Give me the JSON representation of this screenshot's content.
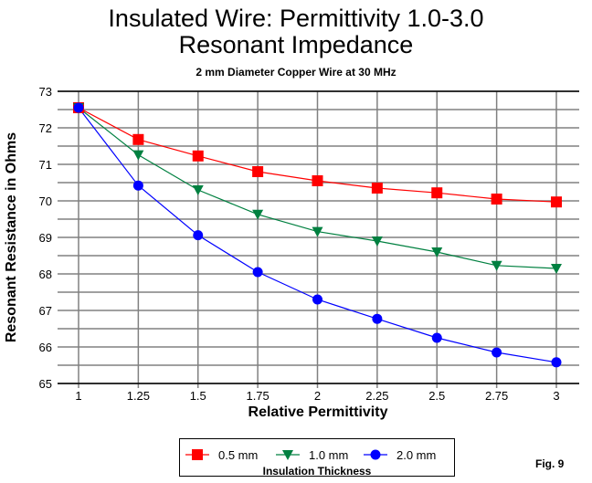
{
  "chart_data": {
    "type": "line",
    "title": "Insulated Wire:  Permittivity 1.0-3.0",
    "title2": "Resonant Impedance",
    "subtitle": "2 mm Diameter Copper Wire at 30 MHz",
    "xlabel": "Relative Permittivity",
    "ylabel": "Resonant Resistance in Ohms",
    "x": [
      1,
      1.25,
      1.5,
      1.75,
      2,
      2.25,
      2.5,
      2.75,
      3
    ],
    "x_tick_labels": [
      "1",
      "1.25",
      "1.5",
      "1.75",
      "2",
      "2.25",
      "2.5",
      "2.75",
      "3"
    ],
    "y_tick_labels": [
      "65",
      "66",
      "67",
      "68",
      "69",
      "70",
      "71",
      "72",
      "73"
    ],
    "xlim": [
      0.8,
      3.2
    ],
    "ylim": [
      65,
      73
    ],
    "grid": true,
    "legend_title": "Insulation Thickness",
    "legend_placement": "bottom",
    "series": [
      {
        "name": "0.5 mm",
        "color": "#ff0000",
        "marker": "square",
        "values": [
          72.55,
          71.68,
          71.23,
          70.8,
          70.55,
          70.35,
          70.22,
          70.05,
          69.97
        ]
      },
      {
        "name": "1.0 mm",
        "color": "#008040",
        "marker": "triangle-down",
        "values": [
          72.55,
          71.26,
          70.3,
          69.63,
          69.16,
          68.9,
          68.6,
          68.23,
          68.15
        ]
      },
      {
        "name": "2.0 mm",
        "color": "#0000ff",
        "marker": "circle",
        "values": [
          72.55,
          70.42,
          69.06,
          68.05,
          67.3,
          66.77,
          66.25,
          65.85,
          65.58
        ]
      }
    ],
    "annotation": "Fig. 9"
  }
}
